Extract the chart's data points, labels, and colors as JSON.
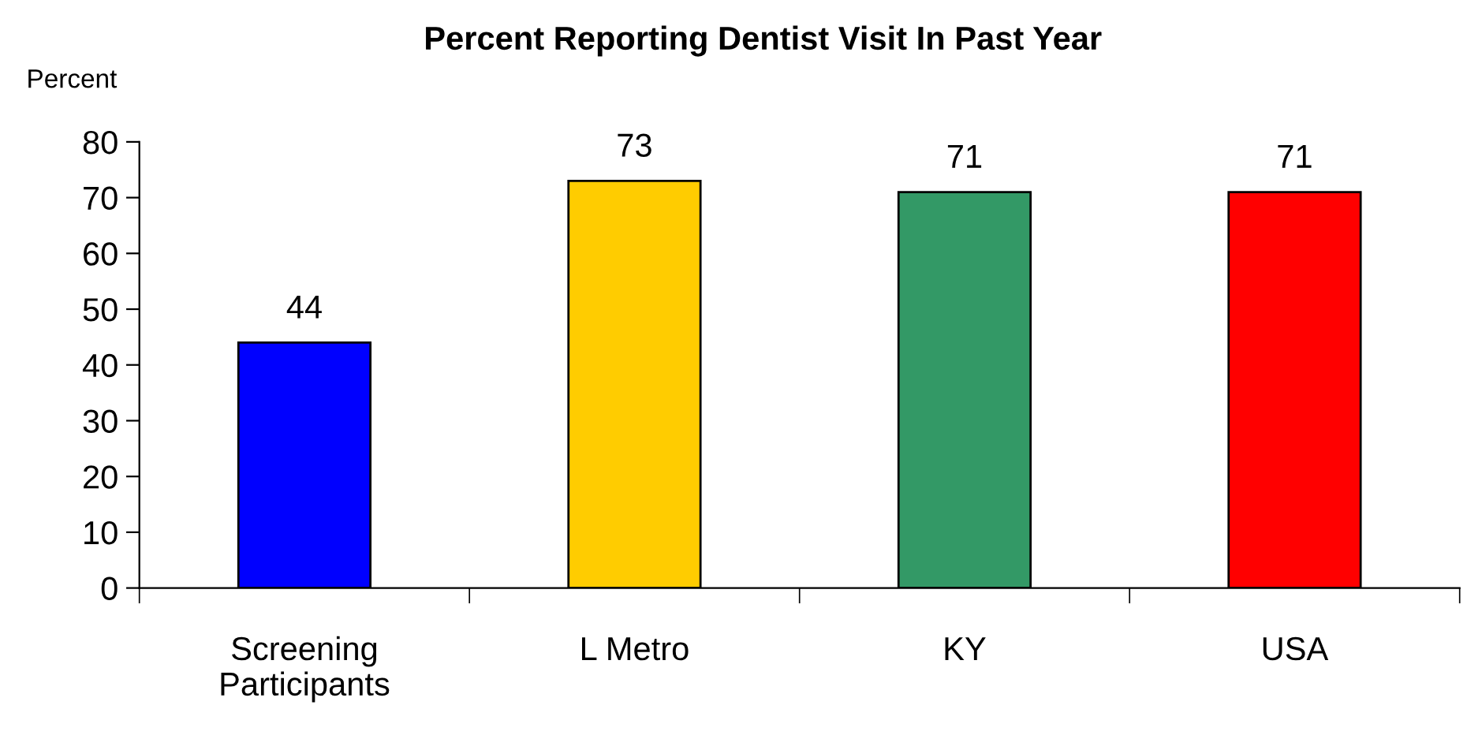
{
  "chart_data": {
    "type": "bar",
    "title": "Percent Reporting Dentist Visit In Past Year",
    "ylabel": "Percent",
    "categories": [
      "Screening\nParticipants",
      "L Metro",
      "KY",
      "USA"
    ],
    "values": [
      44,
      73,
      71,
      71
    ],
    "colors": [
      "#0000ff",
      "#ffcc00",
      "#339966",
      "#ff0000"
    ],
    "ylim": [
      0,
      80
    ],
    "yticks": [
      0,
      10,
      20,
      30,
      40,
      50,
      60,
      70,
      80
    ],
    "data_labels": true,
    "grid": false,
    "legend": false
  }
}
